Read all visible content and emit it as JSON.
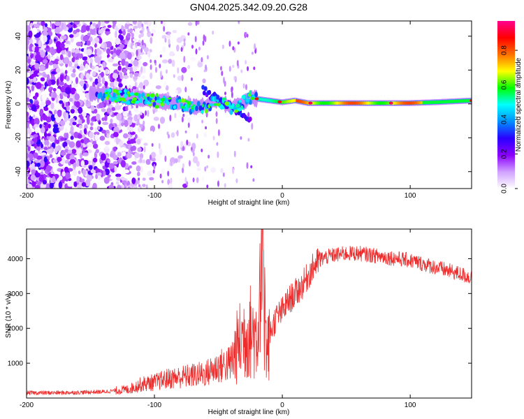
{
  "title": "GN04.2025.342.09.20.G28",
  "chart_data": [
    {
      "type": "heatmap",
      "xlabel": "Height of straight line (km)",
      "ylabel": "Frequency (Hz)",
      "xlim": [
        -200,
        148
      ],
      "ylim": [
        -50,
        49
      ],
      "xticks": [
        -200,
        -100,
        0,
        100
      ],
      "yticks": [
        40,
        20,
        0,
        -20,
        -40
      ],
      "ridge": [
        {
          "x": -140,
          "y": 6
        },
        {
          "x": -130,
          "y": 5
        },
        {
          "x": -120,
          "y": 4
        },
        {
          "x": -110,
          "y": 3
        },
        {
          "x": -100,
          "y": 2
        },
        {
          "x": -90,
          "y": 1
        },
        {
          "x": -80,
          "y": 0
        },
        {
          "x": -70,
          "y": -2
        },
        {
          "x": -60,
          "y": -1
        },
        {
          "x": -50,
          "y": 2
        },
        {
          "x": -40,
          "y": -2
        },
        {
          "x": -30,
          "y": 1
        },
        {
          "x": -25,
          "y": 4
        },
        {
          "x": -20,
          "y": 3
        },
        {
          "x": -10,
          "y": 2
        },
        {
          "x": 0,
          "y": 1
        },
        {
          "x": 10,
          "y": 2
        },
        {
          "x": 20,
          "y": 0.5
        },
        {
          "x": 40,
          "y": 0.5
        },
        {
          "x": 60,
          "y": 0.5
        },
        {
          "x": 80,
          "y": 0.5
        },
        {
          "x": 100,
          "y": 0.5
        },
        {
          "x": 120,
          "y": 1
        },
        {
          "x": 148,
          "y": 2
        }
      ],
      "colorbar": {
        "label": "Normalized spectral amplitude",
        "ticks": [
          "0.0",
          "0.2",
          "0.4",
          "0.6",
          "0.8"
        ],
        "range": [
          0,
          0.97
        ],
        "colors": [
          "#ffffff",
          "#d0a0ff",
          "#8a00ff",
          "#2a00ff",
          "#0090ff",
          "#00ffff",
          "#00ff00",
          "#ffff00",
          "#ff7000",
          "#ff0000",
          "#ff0090"
        ]
      }
    },
    {
      "type": "line",
      "xlabel": "Height of straight line (km)",
      "ylabel": "SNR (10 * v/v)",
      "xlim": [
        -200,
        148
      ],
      "ylim": [
        0,
        4850
      ],
      "xticks": [
        -200,
        -100,
        0,
        100
      ],
      "yticks": [
        1000,
        2000,
        3000,
        4000
      ],
      "color": "#ee2c2c",
      "series": [
        {
          "name": "SNR",
          "x": [
            -200,
            -180,
            -160,
            -140,
            -120,
            -110,
            -100,
            -90,
            -80,
            -70,
            -60,
            -50,
            -40,
            -35,
            -30,
            -25,
            -20,
            -18,
            -15,
            -12,
            -10,
            -5,
            0,
            5,
            10,
            15,
            20,
            25,
            30,
            40,
            50,
            60,
            70,
            80,
            90,
            100,
            110,
            120,
            130,
            140,
            148
          ],
          "y": [
            150,
            150,
            160,
            180,
            250,
            400,
            450,
            550,
            600,
            650,
            700,
            900,
            1000,
            1500,
            1800,
            1900,
            1800,
            2500,
            3500,
            1200,
            1800,
            2300,
            2500,
            2800,
            3000,
            3200,
            3500,
            3800,
            4000,
            4100,
            4150,
            4150,
            4100,
            4050,
            4000,
            3950,
            3850,
            3750,
            3650,
            3550,
            3450
          ]
        }
      ]
    }
  ]
}
